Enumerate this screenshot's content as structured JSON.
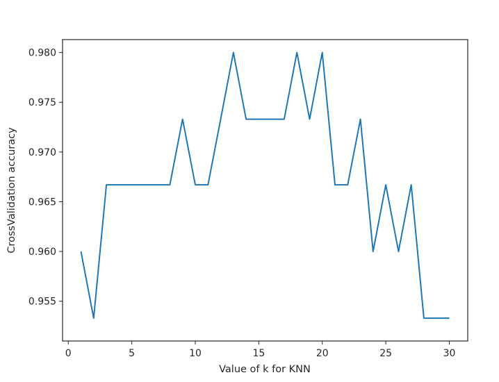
{
  "chart_data": {
    "type": "line",
    "title": "",
    "xlabel": "Value of k for KNN",
    "ylabel": "CrossValidation accuracy",
    "x": [
      1,
      2,
      3,
      4,
      5,
      6,
      7,
      8,
      9,
      10,
      11,
      12,
      13,
      14,
      15,
      16,
      17,
      18,
      19,
      20,
      21,
      22,
      23,
      24,
      25,
      26,
      27,
      28,
      29,
      30
    ],
    "series": [
      {
        "name": "accuracy",
        "color": "#1f77b4",
        "values": [
          0.96,
          0.9533,
          0.9667,
          0.9667,
          0.9667,
          0.9667,
          0.9667,
          0.9667,
          0.9733,
          0.9667,
          0.9667,
          0.9733,
          0.98,
          0.9733,
          0.9733,
          0.9733,
          0.9733,
          0.98,
          0.9733,
          0.98,
          0.9667,
          0.9667,
          0.9733,
          0.96,
          0.9667,
          0.96,
          0.9667,
          0.9533,
          0.9533,
          0.9533
        ]
      }
    ],
    "xticks": [
      0,
      5,
      10,
      15,
      20,
      25,
      30
    ],
    "xtick_labels": [
      "0",
      "5",
      "10",
      "15",
      "20",
      "25",
      "30"
    ],
    "yticks": [
      0.955,
      0.96,
      0.965,
      0.97,
      0.975,
      0.98
    ],
    "ytick_labels": [
      "0.955",
      "0.960",
      "0.965",
      "0.970",
      "0.975",
      "0.980"
    ],
    "xlim": [
      -0.45,
      31.45
    ],
    "ylim": [
      0.951,
      0.9813
    ],
    "grid": false,
    "legend": null
  }
}
